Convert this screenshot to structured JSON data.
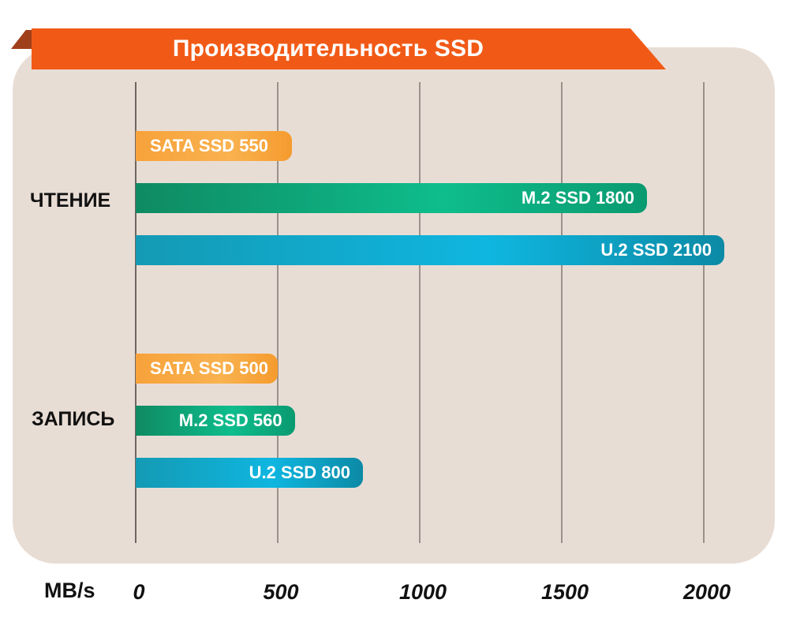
{
  "chart_data": {
    "type": "bar",
    "orientation": "horizontal",
    "title": "Производительность SSD",
    "xlabel": "MB/s",
    "ylabel": "",
    "xlim": [
      0,
      2000
    ],
    "x_ticks": [
      "0",
      "500",
      "1000",
      "1500",
      "2000"
    ],
    "grid": true,
    "groups": [
      {
        "name": "ЧТЕНИЕ",
        "bars": [
          {
            "label": "SATA SSD 550",
            "series": "SATA",
            "value": 550
          },
          {
            "label": "M.2 SSD 1800",
            "series": "M.2",
            "value": 1800
          },
          {
            "label": "U.2 SSD 2100",
            "series": "U.2",
            "value": 2100
          }
        ]
      },
      {
        "name": "ЗАПИСЬ",
        "bars": [
          {
            "label": "SATA SSD 500",
            "series": "SATA",
            "value": 500
          },
          {
            "label": "M.2 SSD 560",
            "series": "M.2",
            "value": 560
          },
          {
            "label": "U.2 SSD 800",
            "series": "U.2",
            "value": 800
          }
        ]
      }
    ]
  },
  "colors": {
    "banner": "#f15a16",
    "panel": "#e8ddd5",
    "SATA": "#f9a640",
    "M.2": "#0daf80",
    "U.2": "#10acd6"
  }
}
